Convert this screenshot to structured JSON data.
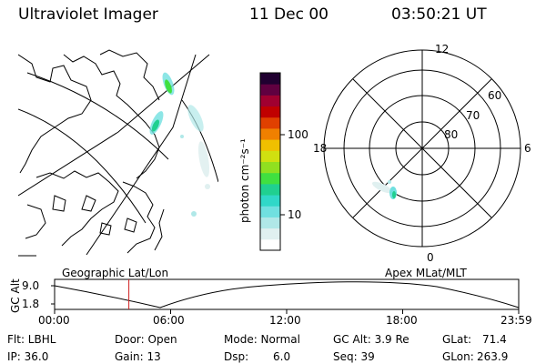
{
  "header": {
    "instrument": "Ultraviolet Imager",
    "date": "11 Dec 00",
    "time": "03:50:21 UT"
  },
  "colorbar": {
    "label": "photon cm⁻²s⁻¹",
    "ticks": [
      "100",
      "10"
    ],
    "colors": [
      "#ffffff",
      "#e0f0f0",
      "#b0e8e8",
      "#70e0e0",
      "#30d8c8",
      "#20d090",
      "#40e040",
      "#90e020",
      "#d0e010",
      "#f0c000",
      "#f08000",
      "#e04000",
      "#c00000",
      "#a00030",
      "#600040",
      "#200030"
    ]
  },
  "polar": {
    "mlt_labels": {
      "top": "12",
      "left": "18",
      "right": "6",
      "bottom": "0"
    },
    "lat_labels": [
      "60",
      "70",
      "80"
    ]
  },
  "timeline": {
    "left_label": "Geographic Lat/Lon",
    "right_label": "Apex MLat/MLT",
    "y_axis_title": "GC Alt",
    "y_ticks": [
      "9.0",
      "1.8"
    ],
    "x_ticks": [
      "00:00",
      "06:00",
      "12:00",
      "18:00",
      "23:59"
    ],
    "current_time_hours": 3.84
  },
  "footer": {
    "row1": {
      "flt": "Flt: LBHL",
      "door": "Door: Open",
      "mode": "Mode: Normal",
      "gcalt": "GC Alt: 3.9 Re",
      "glat_label": "GLat:",
      "glat_value": "71.4"
    },
    "row2": {
      "ip": "IP: 36.0",
      "gain": "Gain: 13",
      "dsp_label": "Dsp:",
      "dsp_value": "6.0",
      "seq": "Seq: 39",
      "glon_label": "GLon:",
      "glon_value": "263.9"
    }
  }
}
